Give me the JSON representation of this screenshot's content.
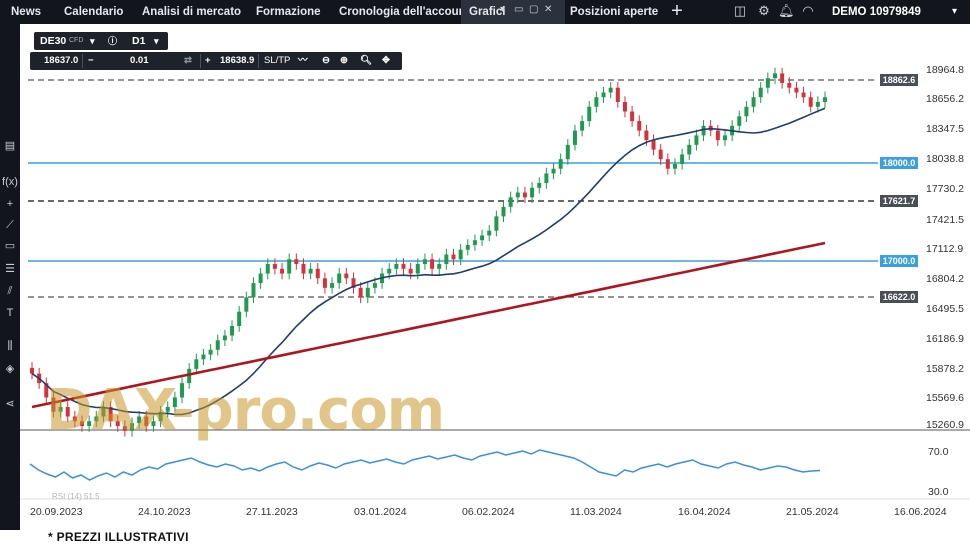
{
  "topbar": {
    "tabs": [
      {
        "label": "News"
      },
      {
        "label": "Calendario"
      },
      {
        "label": "Analisi di mercato"
      },
      {
        "label": "Formazione"
      },
      {
        "label": "Cronologia dell'account"
      },
      {
        "label": "Grafici"
      },
      {
        "label": "Posizioni aperte"
      }
    ],
    "account_label": "DEMO",
    "account_number": "10979849"
  },
  "symbol": {
    "name": "DE30",
    "type": "CFD",
    "timeframe": "D1"
  },
  "trade": {
    "sell_price": "18637.0",
    "volume": "0.01",
    "buy_price": "18638.9",
    "sltp_label": "SL/TP"
  },
  "price_axis": {
    "labels": [
      "18964.8",
      "18656.2",
      "18347.5",
      "18038.8",
      "17730.2",
      "17421.5",
      "17112.9",
      "16804.2",
      "16495.5",
      "16186.9",
      "15878.2",
      "15569.6",
      "15260.9"
    ]
  },
  "time_axis": {
    "labels": [
      "20.09.2023",
      "24.10.2023",
      "27.11.2023",
      "03.01.2024",
      "06.02.2024",
      "11.03.2024",
      "16.04.2024",
      "21.05.2024",
      "16.06.2024"
    ]
  },
  "levels": [
    {
      "value": "18862.6",
      "style": "dashed",
      "color": "#555555"
    },
    {
      "value": "18000.0",
      "style": "solid",
      "color": "#3aa0e0"
    },
    {
      "value": "17621.7",
      "style": "dashed",
      "color": "#111111"
    },
    {
      "value": "17000.0",
      "style": "solid",
      "color": "#3aa0e0"
    },
    {
      "value": "16622.0",
      "style": "dashed",
      "color": "#555555"
    }
  ],
  "rsi": {
    "label": "RSI (14) 51.5",
    "axis_labels": [
      "70.0",
      "30.0"
    ]
  },
  "watermark": "DAX-pro.com",
  "disclaimer": "* PREZZI ILLUSTRATIVI",
  "colors": {
    "bull": "#1f9a4e",
    "bear": "#d6313a",
    "ma_fast": "#1f3d6e",
    "ma_slow": "#b0151d",
    "rsi": "#3b8fdd"
  }
}
